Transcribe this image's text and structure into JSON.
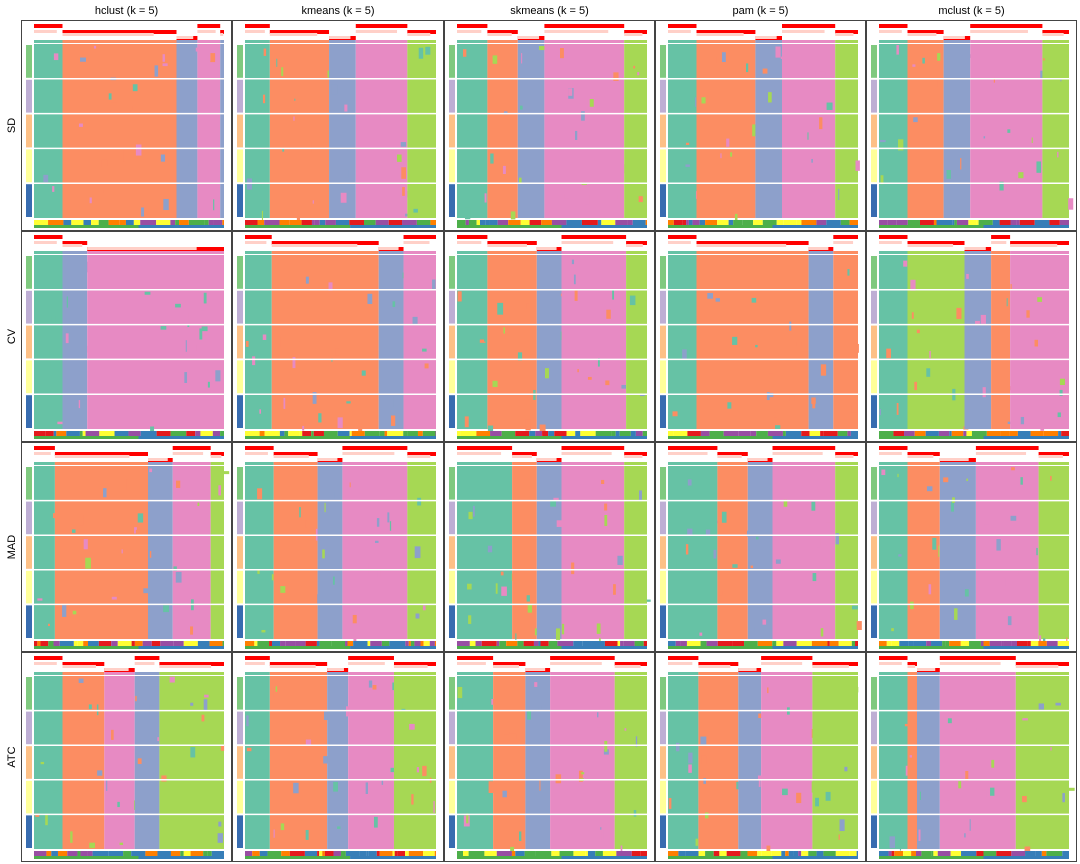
{
  "chart_data": {
    "type": "heatmap",
    "k": 5,
    "column_titles": [
      "hclust (k = 5)",
      "kmeans (k = 5)",
      "skmeans (k = 5)",
      "pam (k = 5)",
      "mclust (k = 5)"
    ],
    "row_titles": [
      "SD",
      "CV",
      "MAD",
      "ATC"
    ],
    "class_colors": [
      "#66c2a5",
      "#fc8d62",
      "#8da0cb",
      "#e78ac3",
      "#a6d854"
    ],
    "group_colors": [
      "#7fc97f",
      "#beaed4",
      "#fdc086",
      "#ffff99",
      "#386cb0"
    ],
    "bottom_track_colors": [
      "#e41a1c",
      "#377eb8",
      "#4daf4a",
      "#984ea3",
      "#ff7f00",
      "#ffff33"
    ],
    "silhouette_color": "#ff0000",
    "panels": [
      [
        {
          "segments": [
            [
              0,
              0.15
            ],
            [
              1,
              0.6
            ],
            [
              2,
              0.11
            ],
            [
              3,
              0.12
            ],
            [
              2,
              0.02
            ]
          ]
        },
        {
          "segments": [
            [
              0,
              0.13
            ],
            [
              1,
              0.31
            ],
            [
              2,
              0.14
            ],
            [
              3,
              0.27
            ],
            [
              4,
              0.15
            ]
          ]
        },
        {
          "segments": [
            [
              0,
              0.16
            ],
            [
              1,
              0.16
            ],
            [
              2,
              0.14
            ],
            [
              3,
              0.42
            ],
            [
              4,
              0.12
            ]
          ]
        },
        {
          "segments": [
            [
              0,
              0.15
            ],
            [
              1,
              0.31
            ],
            [
              2,
              0.14
            ],
            [
              3,
              0.28
            ],
            [
              4,
              0.12
            ]
          ]
        },
        {
          "segments": [
            [
              0,
              0.15
            ],
            [
              1,
              0.19
            ],
            [
              2,
              0.14
            ],
            [
              3,
              0.38
            ],
            [
              4,
              0.14
            ]
          ]
        }
      ],
      [
        {
          "segments": [
            [
              0,
              0.15
            ],
            [
              2,
              0.13
            ],
            [
              3,
              0.72
            ]
          ]
        },
        {
          "segments": [
            [
              0,
              0.14
            ],
            [
              1,
              0.56
            ],
            [
              2,
              0.13
            ],
            [
              3,
              0.17
            ]
          ]
        },
        {
          "segments": [
            [
              0,
              0.16
            ],
            [
              1,
              0.26
            ],
            [
              2,
              0.13
            ],
            [
              3,
              0.34
            ],
            [
              4,
              0.11
            ]
          ]
        },
        {
          "segments": [
            [
              0,
              0.15
            ],
            [
              1,
              0.59
            ],
            [
              2,
              0.13
            ],
            [
              1,
              0.13
            ]
          ]
        },
        {
          "segments": [
            [
              0,
              0.15
            ],
            [
              4,
              0.3
            ],
            [
              2,
              0.14
            ],
            [
              1,
              0.1
            ],
            [
              3,
              0.31
            ]
          ]
        }
      ],
      [
        {
          "segments": [
            [
              0,
              0.11
            ],
            [
              1,
              0.49
            ],
            [
              2,
              0.13
            ],
            [
              3,
              0.2
            ],
            [
              4,
              0.07
            ]
          ]
        },
        {
          "segments": [
            [
              0,
              0.15
            ],
            [
              1,
              0.23
            ],
            [
              2,
              0.13
            ],
            [
              3,
              0.34
            ],
            [
              4,
              0.15
            ]
          ]
        },
        {
          "segments": [
            [
              0,
              0.29
            ],
            [
              1,
              0.13
            ],
            [
              2,
              0.13
            ],
            [
              3,
              0.33
            ],
            [
              4,
              0.12
            ]
          ]
        },
        {
          "segments": [
            [
              0,
              0.26
            ],
            [
              1,
              0.16
            ],
            [
              2,
              0.13
            ],
            [
              3,
              0.33
            ],
            [
              4,
              0.12
            ]
          ]
        },
        {
          "segments": [
            [
              0,
              0.15
            ],
            [
              1,
              0.17
            ],
            [
              2,
              0.19
            ],
            [
              3,
              0.33
            ],
            [
              4,
              0.16
            ]
          ]
        }
      ],
      [
        {
          "segments": [
            [
              0,
              0.15
            ],
            [
              1,
              0.22
            ],
            [
              3,
              0.16
            ],
            [
              2,
              0.13
            ],
            [
              4,
              0.34
            ]
          ]
        },
        {
          "segments": [
            [
              0,
              0.13
            ],
            [
              1,
              0.3
            ],
            [
              2,
              0.11
            ],
            [
              3,
              0.24
            ],
            [
              4,
              0.22
            ]
          ]
        },
        {
          "segments": [
            [
              0,
              0.19
            ],
            [
              1,
              0.17
            ],
            [
              2,
              0.13
            ],
            [
              3,
              0.34
            ],
            [
              4,
              0.17
            ]
          ]
        },
        {
          "segments": [
            [
              0,
              0.16
            ],
            [
              1,
              0.21
            ],
            [
              2,
              0.12
            ],
            [
              3,
              0.27
            ],
            [
              4,
              0.24
            ]
          ]
        },
        {
          "segments": [
            [
              0,
              0.15
            ],
            [
              1,
              0.05
            ],
            [
              2,
              0.12
            ],
            [
              3,
              0.4
            ],
            [
              4,
              0.28
            ]
          ]
        }
      ]
    ]
  }
}
